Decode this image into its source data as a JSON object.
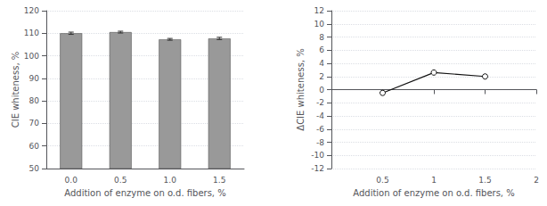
{
  "chart_data": [
    {
      "type": "bar",
      "categories": [
        "0.0",
        "0.5",
        "1.0",
        "1.5"
      ],
      "values": [
        110.0,
        110.5,
        107.3,
        107.7
      ],
      "errors": [
        0.5,
        0.4,
        0.4,
        0.5
      ],
      "color": "#999999",
      "xlabel": "Addition of enzyme on o.d. fibers, %",
      "ylabel": "CIE whiteness, %",
      "ylim": [
        50,
        120
      ],
      "yticks": [
        50,
        60,
        70,
        80,
        90,
        100,
        110,
        120
      ],
      "grid": true
    },
    {
      "type": "line",
      "x": [
        0.5,
        1.0,
        1.5
      ],
      "values": [
        -0.5,
        2.6,
        2.0
      ],
      "color": "#111111",
      "marker": "circle",
      "xlabel": "Addition of enzyme on o.d. fibers, %",
      "ylabel": "ΔCIE whiteness, %",
      "xlim": [
        0,
        2
      ],
      "xticks": [
        0.5,
        1,
        1.5,
        2
      ],
      "ylim": [
        -12,
        12
      ],
      "yticks": [
        -12,
        -10,
        -8,
        -6,
        -4,
        -2,
        0,
        2,
        4,
        6,
        8,
        10,
        12
      ],
      "grid": true
    }
  ]
}
